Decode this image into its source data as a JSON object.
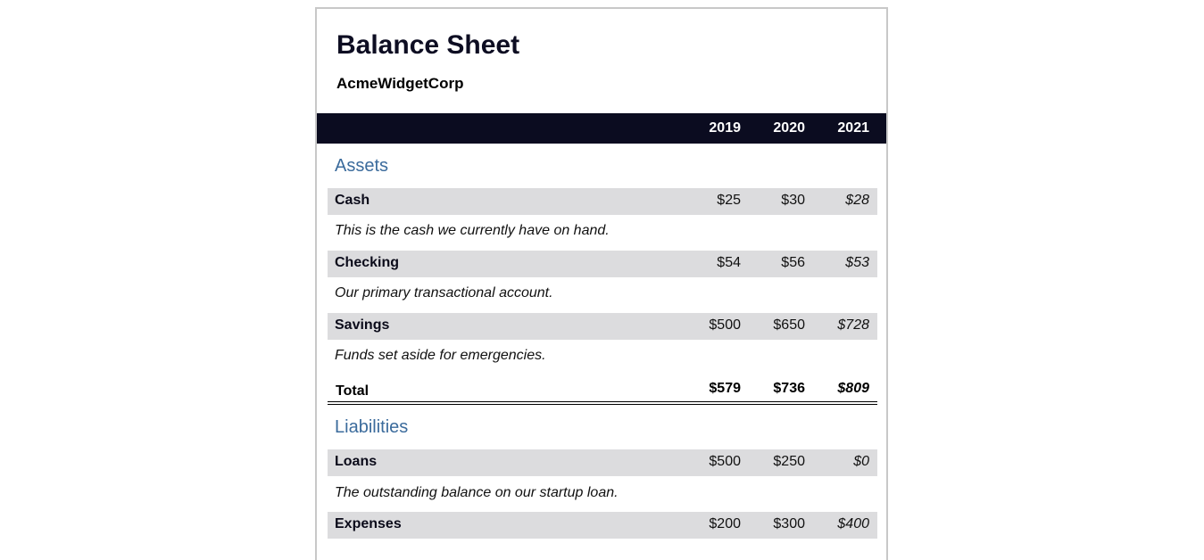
{
  "document": {
    "title": "Balance Sheet",
    "company": "AcmeWidgetCorp"
  },
  "years": [
    "2019",
    "2020",
    "2021"
  ],
  "assets": {
    "heading": "Assets",
    "items": [
      {
        "label": "Cash",
        "values": [
          "$25",
          "$30",
          "$28"
        ],
        "description": "This is the cash we currently have on hand."
      },
      {
        "label": "Checking",
        "values": [
          "$54",
          "$56",
          "$53"
        ],
        "description": "Our primary transactional account."
      },
      {
        "label": "Savings",
        "values": [
          "$500",
          "$650",
          "$728"
        ],
        "description": "Funds set aside for emergencies."
      }
    ],
    "total": {
      "label": "Total",
      "values": [
        "$579",
        "$736",
        "$809"
      ]
    }
  },
  "liabilities": {
    "heading": "Liabilities",
    "items": [
      {
        "label": "Loans",
        "values": [
          "$500",
          "$250",
          "$0"
        ],
        "description": "The outstanding balance on our startup loan."
      },
      {
        "label": "Expenses",
        "values": [
          "$200",
          "$300",
          "$400"
        ],
        "description": ""
      }
    ]
  },
  "colors": {
    "header_band": "#0b0c20",
    "section_heading": "#3b6b9c",
    "row_background": "#dcdcde"
  }
}
